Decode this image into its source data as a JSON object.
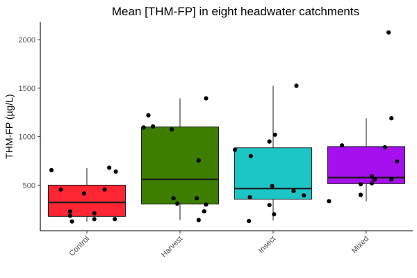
{
  "chart_data": {
    "type": "box",
    "title": "Mean [THM-FP] in eight headwater catchments",
    "xlabel": "",
    "ylabel": "THM-FP (µg/L)",
    "ylim": [
      30,
      2180
    ],
    "yticks": [
      500,
      1000,
      1500,
      2000
    ],
    "categories": [
      "Control",
      "Harvest",
      "Insect",
      "Mixed"
    ],
    "fill_colors": [
      "#ff2634",
      "#3d7d00",
      "#1cc6c6",
      "#a610ee"
    ],
    "boxes": [
      {
        "category": "Control",
        "whisker_low": 125,
        "q1": 178,
        "median": 322,
        "q3": 500,
        "whisker_high": 675
      },
      {
        "category": "Harvest",
        "whisker_low": 140,
        "q1": 305,
        "median": 560,
        "q3": 1100,
        "whisker_high": 1395
      },
      {
        "category": "Insect",
        "whisker_low": 135,
        "q1": 355,
        "median": 465,
        "q3": 885,
        "whisker_high": 1525
      },
      {
        "category": "Mixed",
        "whisker_low": 335,
        "q1": 515,
        "median": 578,
        "q3": 898,
        "whisker_high": 1190
      }
    ],
    "points": [
      {
        "category": "Control",
        "y": 655,
        "jitter": -0.38
      },
      {
        "category": "Control",
        "y": 455,
        "jitter": -0.28
      },
      {
        "category": "Control",
        "y": 228,
        "jitter": -0.18
      },
      {
        "category": "Control",
        "y": 185,
        "jitter": -0.18
      },
      {
        "category": "Control",
        "y": 125,
        "jitter": -0.16
      },
      {
        "category": "Control",
        "y": 415,
        "jitter": -0.03
      },
      {
        "category": "Control",
        "y": 210,
        "jitter": 0.08
      },
      {
        "category": "Control",
        "y": 150,
        "jitter": 0.08
      },
      {
        "category": "Control",
        "y": 455,
        "jitter": 0.19
      },
      {
        "category": "Control",
        "y": 680,
        "jitter": 0.24
      },
      {
        "category": "Control",
        "y": 640,
        "jitter": 0.31
      },
      {
        "category": "Control",
        "y": 150,
        "jitter": 0.3
      },
      {
        "category": "Harvest",
        "y": 1095,
        "jitter": -0.39
      },
      {
        "category": "Harvest",
        "y": 1220,
        "jitter": -0.34
      },
      {
        "category": "Harvest",
        "y": 1105,
        "jitter": -0.29
      },
      {
        "category": "Harvest",
        "y": 1075,
        "jitter": -0.09
      },
      {
        "category": "Harvest",
        "y": 365,
        "jitter": -0.07
      },
      {
        "category": "Harvest",
        "y": 310,
        "jitter": -0.03
      },
      {
        "category": "Harvest",
        "y": 365,
        "jitter": 0.18
      },
      {
        "category": "Harvest",
        "y": 755,
        "jitter": 0.2
      },
      {
        "category": "Harvest",
        "y": 140,
        "jitter": 0.2
      },
      {
        "category": "Harvest",
        "y": 230,
        "jitter": 0.26
      },
      {
        "category": "Harvest",
        "y": 300,
        "jitter": 0.28
      },
      {
        "category": "Harvest",
        "y": 1395,
        "jitter": 0.28
      },
      {
        "category": "Insect",
        "y": 865,
        "jitter": -0.41
      },
      {
        "category": "Insect",
        "y": 800,
        "jitter": -0.24
      },
      {
        "category": "Insect",
        "y": 375,
        "jitter": -0.25
      },
      {
        "category": "Insect",
        "y": 130,
        "jitter": -0.26
      },
      {
        "category": "Insect",
        "y": 950,
        "jitter": -0.04
      },
      {
        "category": "Insect",
        "y": 1020,
        "jitter": 0.02
      },
      {
        "category": "Insect",
        "y": 490,
        "jitter": -0.01
      },
      {
        "category": "Insect",
        "y": 295,
        "jitter": -0.04
      },
      {
        "category": "Insect",
        "y": 200,
        "jitter": 0.01
      },
      {
        "category": "Insect",
        "y": 440,
        "jitter": 0.22
      },
      {
        "category": "Insect",
        "y": 1525,
        "jitter": 0.25
      },
      {
        "category": "Insect",
        "y": 395,
        "jitter": 0.33
      },
      {
        "category": "Mixed",
        "y": 335,
        "jitter": -0.4
      },
      {
        "category": "Mixed",
        "y": 910,
        "jitter": -0.26
      },
      {
        "category": "Mixed",
        "y": 510,
        "jitter": -0.06
      },
      {
        "category": "Mixed",
        "y": 400,
        "jitter": -0.06
      },
      {
        "category": "Mixed",
        "y": 590,
        "jitter": 0.06
      },
      {
        "category": "Mixed",
        "y": 560,
        "jitter": 0.09
      },
      {
        "category": "Mixed",
        "y": 520,
        "jitter": 0.06
      },
      {
        "category": "Mixed",
        "y": 890,
        "jitter": 0.2
      },
      {
        "category": "Mixed",
        "y": 2075,
        "jitter": 0.24
      },
      {
        "category": "Mixed",
        "y": 1190,
        "jitter": 0.27
      },
      {
        "category": "Mixed",
        "y": 560,
        "jitter": 0.27
      },
      {
        "category": "Mixed",
        "y": 745,
        "jitter": 0.33
      }
    ],
    "grid": false,
    "legend": "none"
  }
}
